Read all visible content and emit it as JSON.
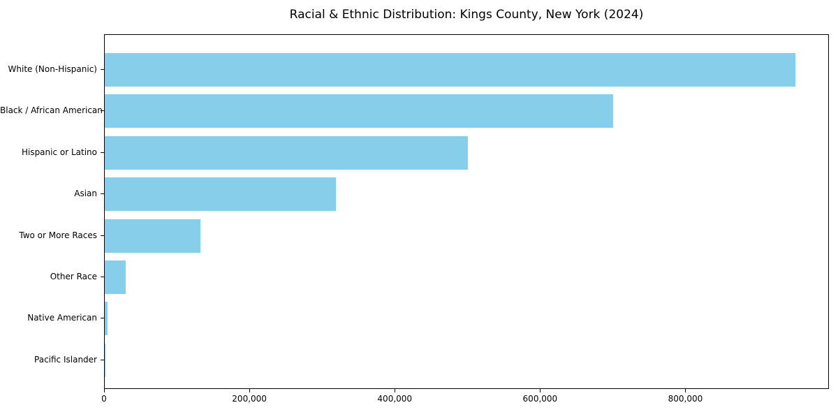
{
  "chart_data": {
    "type": "bar",
    "orientation": "horizontal",
    "title": "Racial & Ethnic Distribution: Kings County, New York (2024)",
    "xlabel": "",
    "ylabel": "",
    "categories": [
      "White (Non-Hispanic)",
      "Black / African American",
      "Hispanic or Latino",
      "Asian",
      "Two or More Races",
      "Other Race",
      "Native American",
      "Pacific Islander"
    ],
    "values": [
      950000,
      700000,
      500000,
      318000,
      132000,
      29000,
      4200,
      600
    ],
    "xlim": [
      0,
      997500
    ],
    "x_ticks": [
      {
        "value": 0,
        "label": "0"
      },
      {
        "value": 200000,
        "label": "200,000"
      },
      {
        "value": 400000,
        "label": "400,000"
      },
      {
        "value": 600000,
        "label": "600,000"
      },
      {
        "value": 800000,
        "label": "800,000"
      }
    ],
    "bar_color": "#87CEEB",
    "axis_color": "#000000",
    "background_color": "#ffffff",
    "grid": false,
    "legend": "none"
  }
}
